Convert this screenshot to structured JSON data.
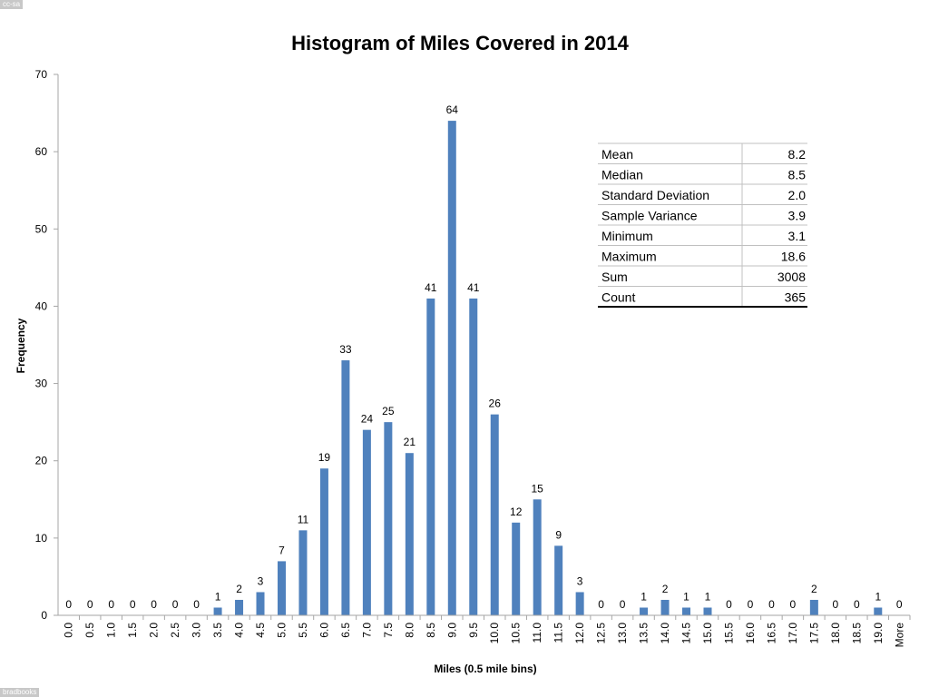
{
  "marks": {
    "top": "cc-sa",
    "bottom": "bradbooks"
  },
  "colors": {
    "bar": "#4f81bd",
    "axis": "#a6a6a6",
    "text": "#000000",
    "table_line": "#c0c0c0"
  },
  "chart_data": {
    "type": "bar",
    "title": "Histogram of Miles Covered in 2014",
    "xlabel": "Miles (0.5 mile bins)",
    "ylabel": "Frequency",
    "ylim": [
      0,
      70
    ],
    "yticks": [
      0,
      10,
      20,
      30,
      40,
      50,
      60,
      70
    ],
    "grid": false,
    "legend": "none",
    "categories": [
      "0.0",
      "0.5",
      "1.0",
      "1.5",
      "2.0",
      "2.5",
      "3.0",
      "3.5",
      "4.0",
      "4.5",
      "5.0",
      "5.5",
      "6.0",
      "6.5",
      "7.0",
      "7.5",
      "8.0",
      "8.5",
      "9.0",
      "9.5",
      "10.0",
      "10.5",
      "11.0",
      "11.5",
      "12.0",
      "12.5",
      "13.0",
      "13.5",
      "14.0",
      "14.5",
      "15.0",
      "15.5",
      "16.0",
      "16.5",
      "17.0",
      "17.5",
      "18.0",
      "18.5",
      "19.0",
      "More"
    ],
    "values": [
      0,
      0,
      0,
      0,
      0,
      0,
      0,
      1,
      2,
      3,
      7,
      11,
      19,
      33,
      24,
      25,
      21,
      41,
      64,
      41,
      26,
      12,
      15,
      9,
      3,
      0,
      0,
      1,
      2,
      1,
      1,
      0,
      0,
      0,
      0,
      2,
      0,
      0,
      1,
      0
    ],
    "stats_table": [
      {
        "label": "Mean",
        "value": "8.2"
      },
      {
        "label": "Median",
        "value": "8.5"
      },
      {
        "label": "Standard Deviation",
        "value": "2.0"
      },
      {
        "label": "Sample Variance",
        "value": "3.9"
      },
      {
        "label": "Minimum",
        "value": "3.1"
      },
      {
        "label": "Maximum",
        "value": "18.6"
      },
      {
        "label": "Sum",
        "value": "3008"
      },
      {
        "label": "Count",
        "value": "365"
      }
    ]
  }
}
